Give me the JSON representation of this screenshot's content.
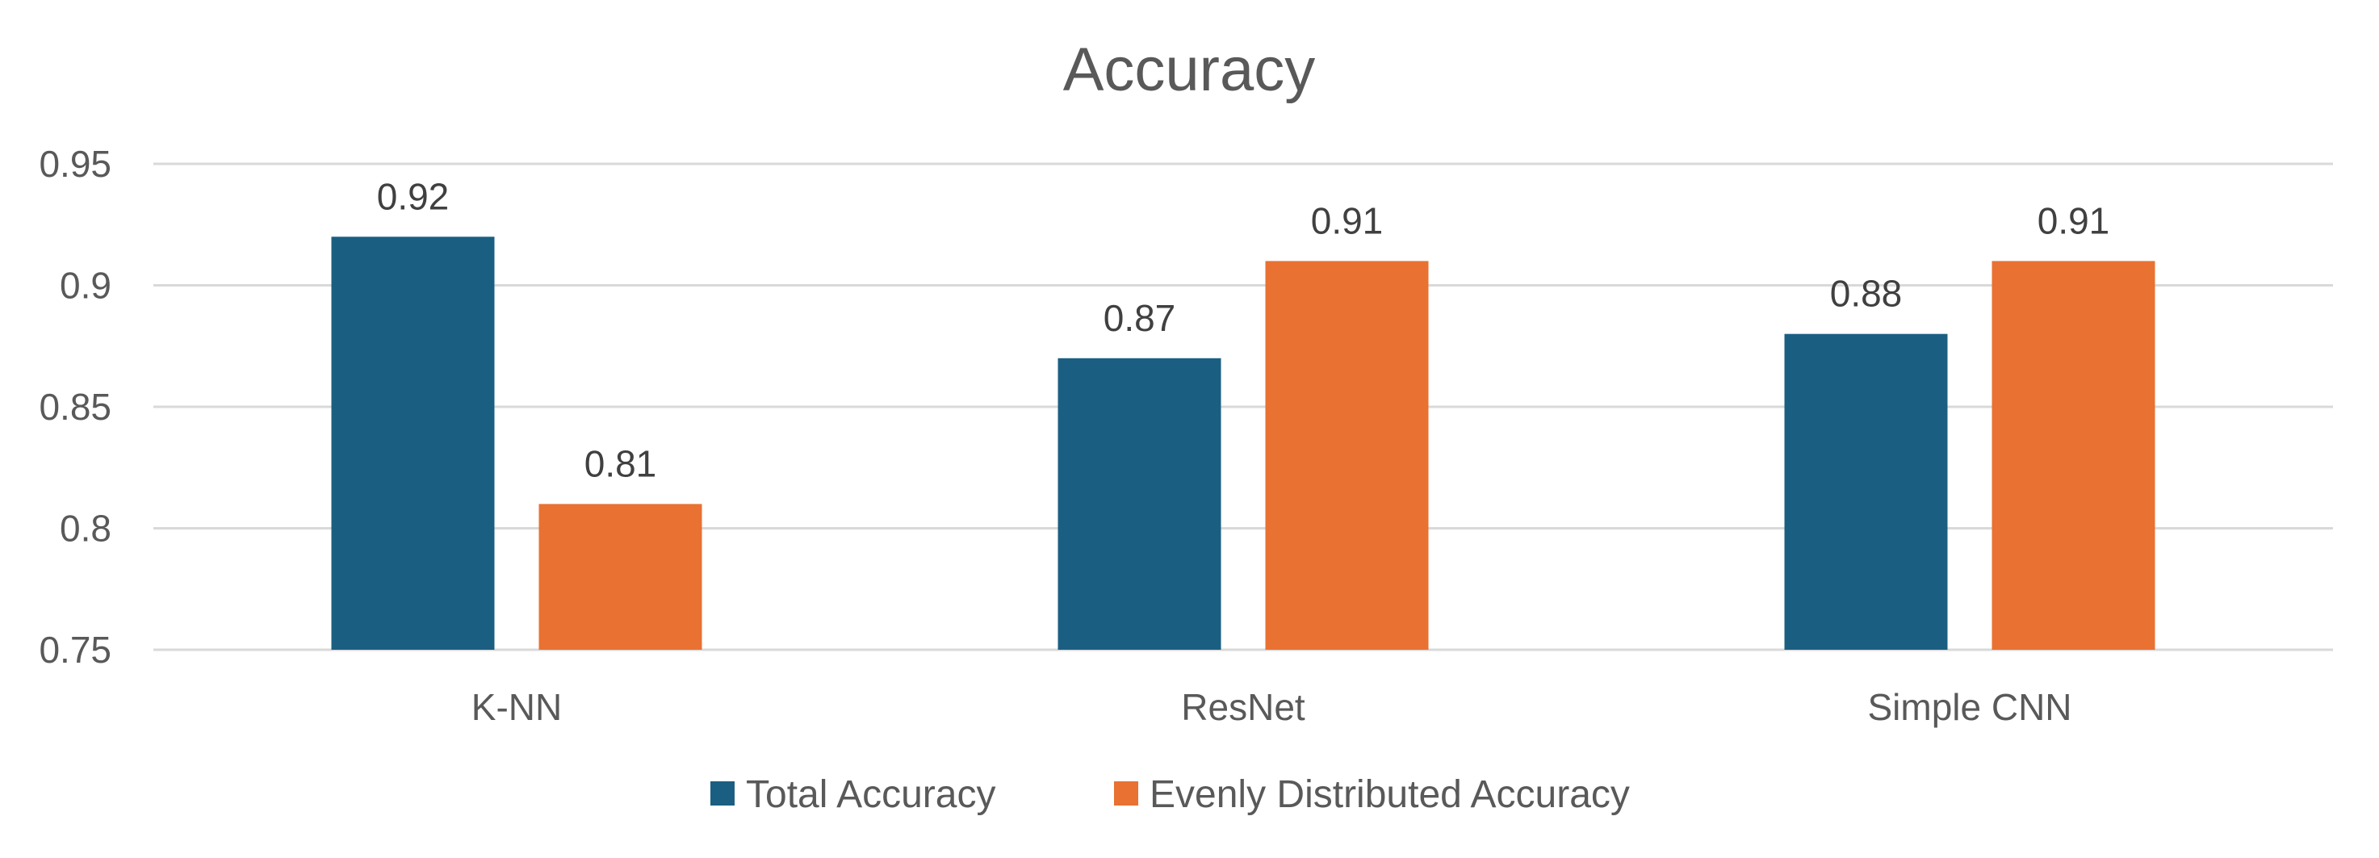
{
  "chart_data": {
    "type": "bar",
    "title": "Accuracy",
    "xlabel": "",
    "ylabel": "",
    "categories": [
      "K-NN",
      "ResNet",
      "Simple CNN"
    ],
    "series": [
      {
        "name": "Total Accuracy",
        "color": "#1a5f82",
        "values": [
          0.92,
          0.87,
          0.88
        ],
        "labels": [
          "0.92",
          "0.87",
          "0.88"
        ]
      },
      {
        "name": "Evenly Distributed Accuracy",
        "color": "#e97132",
        "values": [
          0.81,
          0.91,
          0.91
        ],
        "labels": [
          "0.81",
          "0.91",
          "0.91"
        ]
      }
    ],
    "ylim": [
      0.75,
      0.95
    ],
    "yticks": [
      0.75,
      0.8,
      0.85,
      0.9,
      0.95
    ],
    "ytick_labels": [
      "0.75",
      "0.8",
      "0.85",
      "0.9",
      "0.95"
    ],
    "grid": true,
    "legend_position": "bottom"
  }
}
